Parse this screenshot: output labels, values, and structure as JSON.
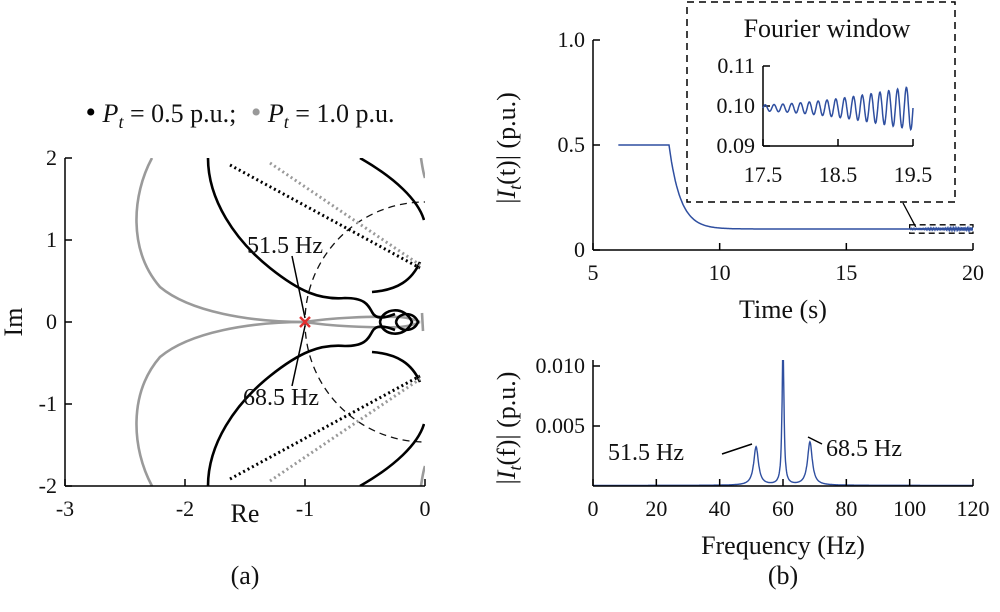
{
  "chart_data": [
    {
      "panel": "(a)",
      "type": "line",
      "xlabel": "Re",
      "ylabel": "Im",
      "xlim": [
        -3,
        0
      ],
      "ylim": [
        -2,
        2
      ],
      "xticks": [
        -3,
        -2,
        -1,
        0
      ],
      "yticks": [
        -2,
        -1,
        0,
        1,
        2
      ],
      "grid": false,
      "legend": {
        "placement": "top",
        "marker": "•",
        "separator": ";",
        "items": [
          {
            "label_sym": "P",
            "label_sub": "t",
            "label_rest": " = 0.5 p.u.",
            "color": "#000000"
          },
          {
            "label_sym": "P",
            "label_sub": "t",
            "label_rest": " = 1.0 p.u.",
            "color": "#999999"
          }
        ]
      },
      "series": [
        {
          "name": "P_t = 0.5 p.u.",
          "color": "#000000",
          "points": [
            [
              -1.85,
              -2.0
            ],
            [
              -1.7,
              -1.35
            ],
            [
              -1.4,
              -0.72
            ],
            [
              -1.1,
              -0.22
            ],
            [
              -0.7,
              -0.1
            ],
            [
              -0.45,
              -0.12
            ],
            [
              -0.3,
              -0.05
            ],
            [
              -0.22,
              0
            ],
            [
              -0.3,
              0.05
            ],
            [
              -0.45,
              0.12
            ],
            [
              -0.7,
              0.1
            ],
            [
              -1.1,
              0.22
            ],
            [
              -1.4,
              0.72
            ],
            [
              -1.7,
              1.35
            ],
            [
              -1.85,
              2.0
            ]
          ]
        },
        {
          "name": "P_t = 1.0 p.u.",
          "color": "#999999",
          "points": [
            [
              -2.45,
              -2.0
            ],
            [
              -2.1,
              -1.1
            ],
            [
              -1.75,
              -0.5
            ],
            [
              -1.4,
              -0.12
            ],
            [
              -1.0,
              0
            ],
            [
              -0.5,
              0.03
            ],
            [
              -0.2,
              0.02
            ],
            [
              0,
              0
            ],
            [
              -0.2,
              -0.02
            ],
            [
              -0.5,
              -0.03
            ],
            [
              -1.0,
              0
            ],
            [
              -1.4,
              0.12
            ],
            [
              -1.75,
              0.5
            ],
            [
              -2.1,
              1.1
            ],
            [
              -2.45,
              2.0
            ]
          ]
        }
      ],
      "reference_circle": {
        "center": [
          0,
          0
        ],
        "radius": 1,
        "style": "dashed"
      },
      "marked_point": {
        "x": -1,
        "y": 0,
        "marker": "x",
        "color": "#e03030"
      },
      "annotations": [
        {
          "text": "51.5 Hz",
          "x": -1.0,
          "y": 0.05
        },
        {
          "text": "68.5 Hz",
          "x": -1.0,
          "y": -0.05
        }
      ],
      "caption": "(a)"
    },
    {
      "panel": "(b) top",
      "type": "line",
      "xlabel": "Time (s)",
      "ylabel": {
        "before": "|",
        "sym": "I",
        "sub": "t",
        "after": "(t)| (p.u.)"
      },
      "xlim": [
        5,
        20
      ],
      "ylim": [
        0,
        1.0
      ],
      "xticks": [
        5,
        10,
        15,
        20
      ],
      "yticks": [
        "0",
        "0.5",
        "1.0"
      ],
      "grid": false,
      "series": [
        {
          "name": "|I_t(t)|",
          "color": "#2f4fa0",
          "description_points": [
            [
              6.0,
              0.5
            ],
            [
              8.0,
              0.5
            ],
            [
              8.3,
              0.3
            ],
            [
              8.6,
              0.19
            ],
            [
              9.0,
              0.13
            ],
            [
              9.5,
              0.105
            ],
            [
              10.0,
              0.1
            ],
            [
              20.0,
              0.1
            ]
          ]
        }
      ],
      "inset": {
        "title": "Fourier window",
        "xlim": [
          17.5,
          19.5
        ],
        "ylim": [
          0.09,
          0.11
        ],
        "xticks": [
          "17.5",
          "18.5",
          "19.5"
        ],
        "yticks": [
          "0.09",
          "0.10",
          "0.11"
        ],
        "signal": {
          "mean": 0.0995,
          "amp_start": 0.0008,
          "amp_end": 0.0055,
          "cycles": 17
        }
      },
      "zoom_box": {
        "x": [
          17.5,
          19.5
        ],
        "y": [
          0.08,
          0.12
        ]
      }
    },
    {
      "panel": "(b) bottom",
      "type": "line",
      "xlabel": "Frequency (Hz)",
      "ylabel": {
        "before": "|",
        "sym": "I",
        "sub": "t",
        "after": "(f)| (p.u.)"
      },
      "xlim": [
        0,
        120
      ],
      "ylim": [
        0,
        0.01
      ],
      "xticks": [
        0,
        20,
        40,
        60,
        80,
        100,
        120
      ],
      "yticks": [
        "0.005",
        "0.010"
      ],
      "grid": false,
      "series": [
        {
          "name": "|I_t(f)|",
          "color": "#2f4fa0",
          "peaks": [
            {
              "f": 51.5,
              "amp": 0.0032
            },
            {
              "f": 60,
              "amp": 0.012
            },
            {
              "f": 68.5,
              "amp": 0.0036
            }
          ],
          "baseline": 5e-05
        }
      ],
      "annotations": [
        {
          "text": "51.5 Hz",
          "x": 51.5,
          "y": 0.0032
        },
        {
          "text": "68.5 Hz",
          "x": 68.5,
          "y": 0.0036
        }
      ],
      "caption": "(b)"
    }
  ]
}
